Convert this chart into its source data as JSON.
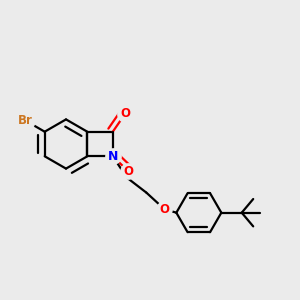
{
  "background_color": "#EBEBEB",
  "bond_color": "#000000",
  "bond_width": 1.6,
  "atom_colors": {
    "Br": "#CC7722",
    "N": "#0000FF",
    "O": "#FF0000",
    "C": "#000000"
  }
}
